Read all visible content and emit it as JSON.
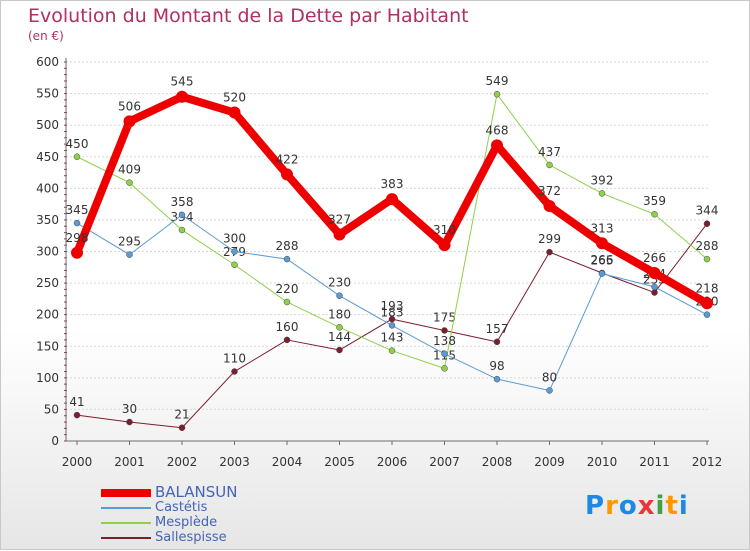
{
  "header": {
    "title": "Evolution du Montant de la Dette par Habitant",
    "subtitle": "(en €)"
  },
  "logo": {
    "text": "Proxiti"
  },
  "colors": {
    "title": "#b03060",
    "axis": "#6e6e6e",
    "grid": "#d8d8d8",
    "legend_text": "#4464b8"
  },
  "chart_data": {
    "type": "line",
    "title": "Evolution du Montant de la Dette par Habitant",
    "ylabel": "(en €)",
    "xlabel": "",
    "ylim": [
      0,
      600
    ],
    "yticks": [
      0,
      50,
      100,
      150,
      200,
      250,
      300,
      350,
      400,
      450,
      500,
      550,
      600
    ],
    "x": [
      "2000",
      "2001",
      "2002",
      "2003",
      "2004",
      "2005",
      "2006",
      "2007",
      "2008",
      "2009",
      "2010",
      "2011",
      "2012"
    ],
    "grid": "horizontal",
    "legend_position": "bottom-left",
    "series": [
      {
        "name": "Sallespisse",
        "color": "#7a1f2e",
        "width": 1,
        "values": [
          41,
          30,
          21,
          110,
          160,
          144,
          193,
          175,
          157,
          299,
          266,
          235,
          344
        ],
        "labels": [
          "41",
          "30",
          "21",
          "110",
          "160",
          "144",
          "193",
          "175",
          "157",
          "299",
          "266",
          "235",
          "344"
        ]
      },
      {
        "name": "Mesplède",
        "color": "#8ed04a",
        "width": 1,
        "values": [
          450,
          409,
          334,
          279,
          220,
          180,
          143,
          115,
          549,
          437,
          392,
          359,
          288
        ],
        "labels": [
          "450",
          "409",
          "334",
          "279",
          "220",
          "180",
          "143",
          "115",
          "549",
          "437",
          "392",
          "359",
          "288"
        ]
      },
      {
        "name": "Castétis",
        "color": "#5b9bd5",
        "width": 1,
        "values": [
          345,
          295,
          358,
          300,
          288,
          230,
          183,
          138,
          98,
          80,
          265,
          244,
          200
        ],
        "labels": [
          "345",
          "295",
          "358",
          "300",
          "288",
          "230",
          "183",
          "138",
          "98",
          "80",
          "265",
          "244",
          "200"
        ]
      },
      {
        "name": "BALANSUN",
        "color": "#ee0000",
        "width": 8,
        "values": [
          298,
          506,
          545,
          520,
          422,
          327,
          383,
          310,
          468,
          372,
          313,
          266,
          218
        ],
        "labels": [
          "298",
          "506",
          "545",
          "520",
          "422",
          "327",
          "383",
          "310",
          "468",
          "372",
          "313",
          "266",
          "218"
        ]
      }
    ]
  }
}
